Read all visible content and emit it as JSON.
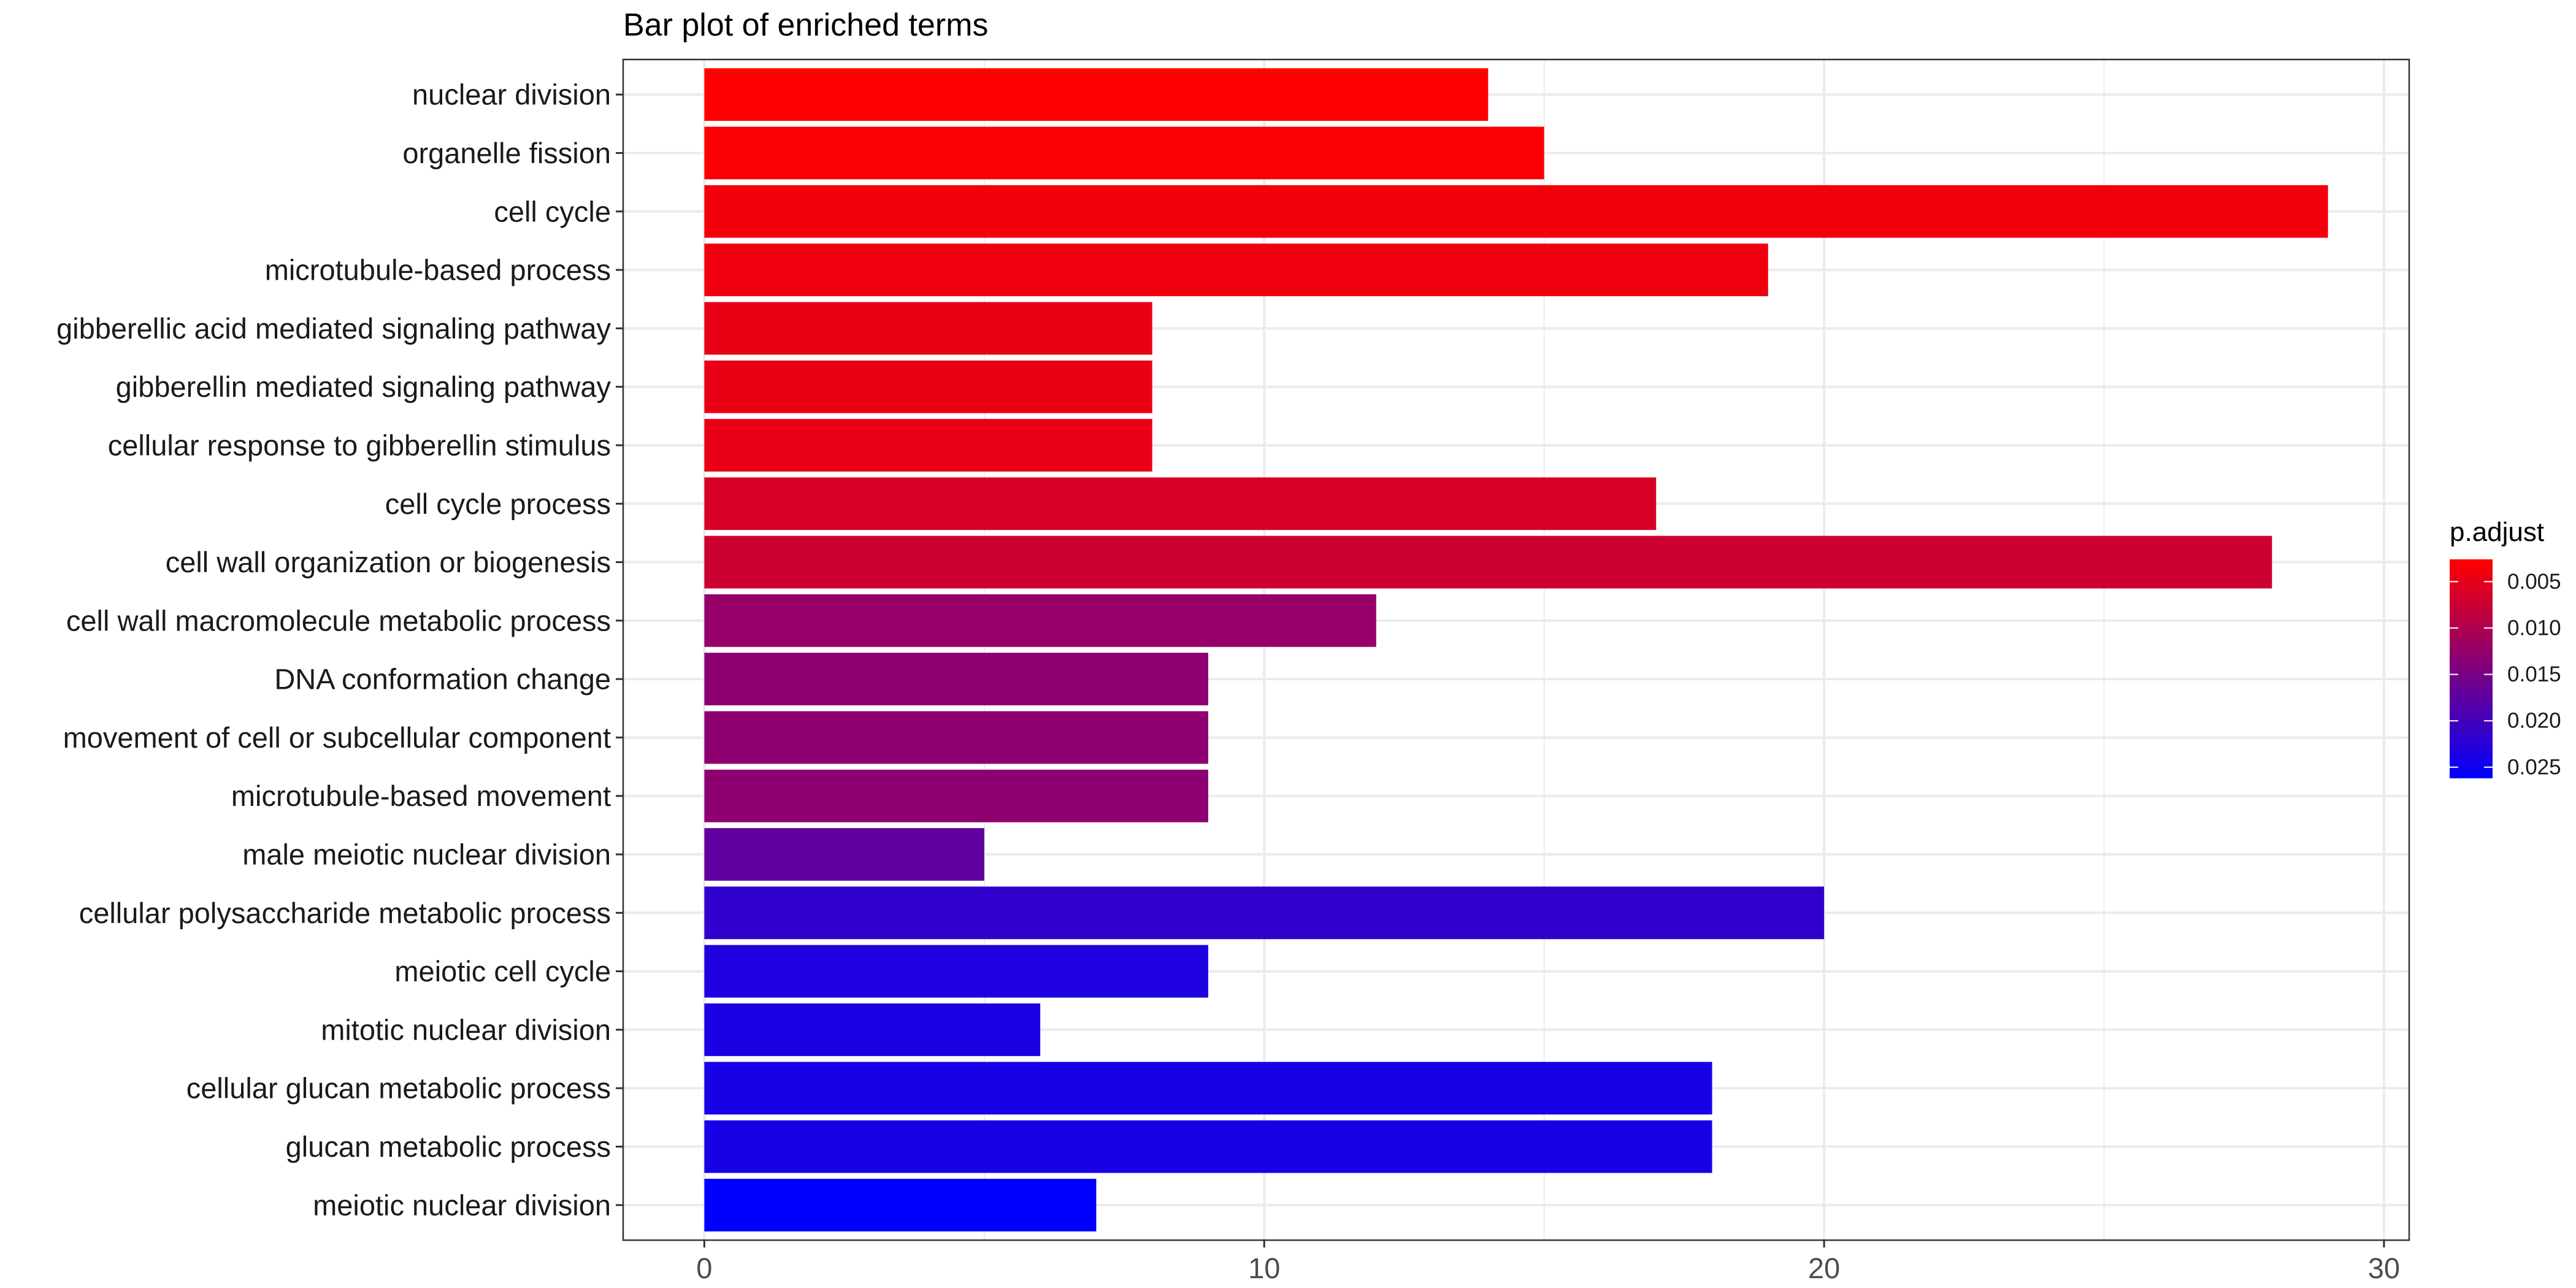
{
  "chart_data": {
    "type": "bar",
    "orientation": "horizontal",
    "title": "Bar plot of enriched terms",
    "xlabel": "",
    "ylabel": "",
    "xlim": [
      -1.45,
      30.45
    ],
    "x_ticks": [
      0,
      10,
      20,
      30
    ],
    "grid": true,
    "legend_position": "right",
    "categories": [
      "nuclear division",
      "organelle fission",
      "cell cycle",
      "microtubule-based process",
      "gibberellic acid mediated signaling pathway",
      "gibberellin mediated signaling pathway",
      "cellular response to gibberellin stimulus",
      "cell cycle process",
      "cell wall organization or biogenesis",
      "cell wall macromolecule metabolic process",
      "DNA conformation change",
      "movement of cell or subcellular component",
      "microtubule-based movement",
      "male meiotic nuclear division",
      "cellular polysaccharide metabolic process",
      "meiotic cell cycle",
      "mitotic nuclear division",
      "cellular glucan metabolic process",
      "glucan metabolic process",
      "meiotic nuclear division"
    ],
    "values": [
      14,
      15,
      29,
      19,
      8,
      8,
      8,
      17,
      28,
      12,
      9,
      9,
      9,
      5,
      20,
      9,
      6,
      18,
      18,
      7
    ],
    "p_adjust": [
      0.0026,
      0.003,
      0.0036,
      0.004,
      0.0045,
      0.0045,
      0.0046,
      0.0061,
      0.0072,
      0.0122,
      0.0131,
      0.0131,
      0.0131,
      0.0173,
      0.0216,
      0.0234,
      0.0236,
      0.024,
      0.024,
      0.0262
    ],
    "legend": {
      "title": "p.adjust",
      "breaks": [
        0.005,
        0.01,
        0.015,
        0.02,
        0.025
      ],
      "labels": [
        "0.005",
        "0.010",
        "0.015",
        "0.020",
        "0.025"
      ],
      "range": [
        0.0026,
        0.0262
      ],
      "color_low_p": "#ff0000",
      "color_high_p": "#0000ff"
    },
    "colors": {
      "panel_border": "#333333",
      "grid_major": "#ebebeb",
      "grid_minor": "#f5f5f5",
      "tick": "#333333"
    }
  }
}
